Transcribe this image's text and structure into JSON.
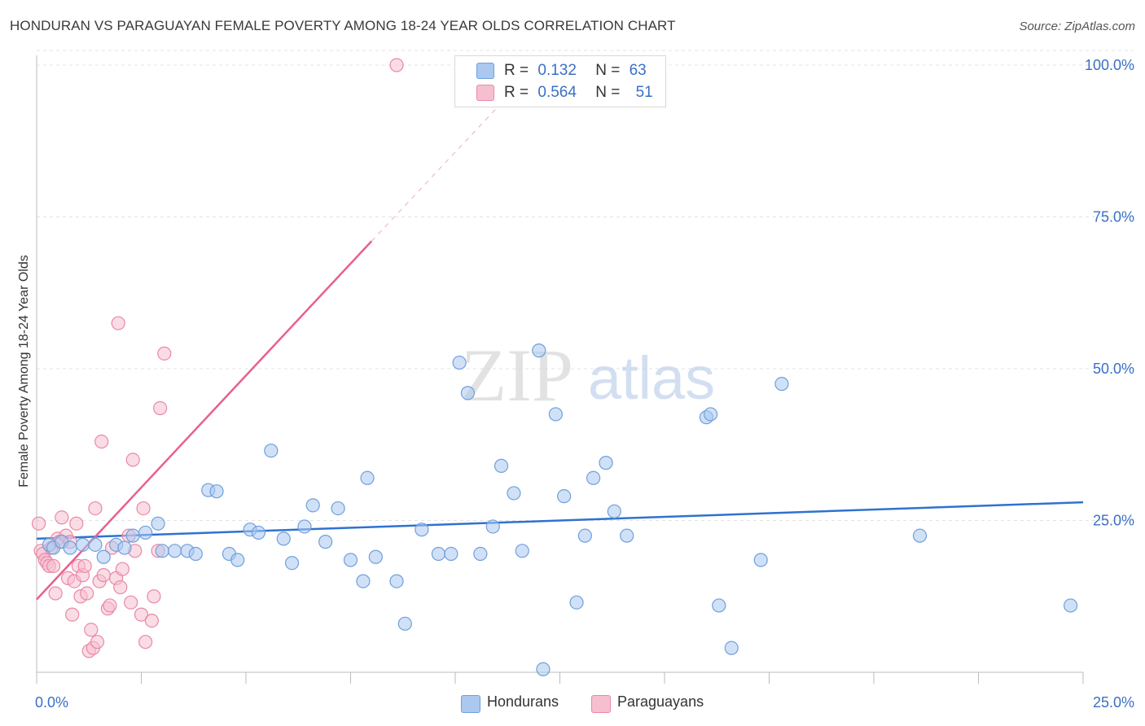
{
  "header": {
    "title": "HONDURAN VS PARAGUAYAN FEMALE POVERTY AMONG 18-24 YEAR OLDS CORRELATION CHART",
    "source": "Source: ZipAtlas.com"
  },
  "watermark": {
    "zip": "ZIP",
    "atlas": "atlas"
  },
  "legend": {
    "rows": [
      {
        "r_label": "R =",
        "r_value": "0.132",
        "n_label": "N =",
        "n_value": "63"
      },
      {
        "r_label": "R =",
        "r_value": "0.564",
        "n_label": "N =",
        "n_value": "51"
      }
    ]
  },
  "bottom_legend": {
    "series1": "Hondurans",
    "series2": "Paraguayans"
  },
  "colors": {
    "blue_fill": "#aac8f0",
    "blue_stroke": "#6f9fdc",
    "blue_line": "#2f72d0",
    "pink_fill": "#f6bfd0",
    "pink_stroke": "#e889a8",
    "pink_line": "#e8608e",
    "tick_label": "#3b6fc6",
    "grid": "#e3e3e3"
  },
  "chart_data": {
    "type": "scatter",
    "title": "HONDURAN VS PARAGUAYAN FEMALE POVERTY AMONG 18-24 YEAR OLDS CORRELATION CHART",
    "xlabel": "",
    "ylabel": "Female Poverty Among 18-24 Year Olds",
    "xlim": [
      0,
      25
    ],
    "ylim": [
      0,
      100
    ],
    "x_tick_labels": [
      "0.0%",
      "25.0%"
    ],
    "y_tick_labels": [
      "25.0%",
      "50.0%",
      "75.0%",
      "100.0%"
    ],
    "y_ticks": [
      25,
      50,
      75,
      100
    ],
    "grid": true,
    "legend_position": "top-center",
    "series": [
      {
        "name": "Hondurans",
        "R": 0.132,
        "N": 63,
        "trend": {
          "x": [
            0,
            25
          ],
          "y": [
            22.0,
            28.0
          ]
        },
        "points": [
          [
            0.3,
            21.0
          ],
          [
            0.4,
            20.5
          ],
          [
            0.6,
            21.5
          ],
          [
            0.8,
            20.5
          ],
          [
            1.1,
            21.0
          ],
          [
            1.4,
            21.0
          ],
          [
            1.6,
            19.0
          ],
          [
            1.9,
            21.0
          ],
          [
            2.1,
            20.5
          ],
          [
            2.3,
            22.5
          ],
          [
            2.6,
            23.0
          ],
          [
            2.9,
            24.5
          ],
          [
            3.0,
            20.0
          ],
          [
            3.3,
            20.0
          ],
          [
            3.6,
            20.0
          ],
          [
            3.8,
            19.5
          ],
          [
            4.1,
            30.0
          ],
          [
            4.3,
            29.8
          ],
          [
            4.6,
            19.5
          ],
          [
            4.8,
            18.5
          ],
          [
            5.1,
            23.5
          ],
          [
            5.3,
            23.0
          ],
          [
            5.6,
            36.5
          ],
          [
            5.9,
            22.0
          ],
          [
            6.1,
            18.0
          ],
          [
            6.4,
            24.0
          ],
          [
            6.6,
            27.5
          ],
          [
            6.9,
            21.5
          ],
          [
            7.2,
            27.0
          ],
          [
            7.5,
            18.5
          ],
          [
            7.8,
            15.0
          ],
          [
            7.9,
            32.0
          ],
          [
            8.1,
            19.0
          ],
          [
            8.6,
            15.0
          ],
          [
            8.8,
            8.0
          ],
          [
            9.2,
            23.5
          ],
          [
            9.6,
            19.5
          ],
          [
            9.9,
            19.5
          ],
          [
            10.1,
            51.0
          ],
          [
            10.3,
            46.0
          ],
          [
            10.6,
            19.5
          ],
          [
            10.9,
            24.0
          ],
          [
            11.1,
            34.0
          ],
          [
            11.4,
            29.5
          ],
          [
            11.6,
            20.0
          ],
          [
            12.0,
            53.0
          ],
          [
            12.1,
            0.5
          ],
          [
            12.4,
            42.5
          ],
          [
            12.6,
            29.0
          ],
          [
            12.9,
            11.5
          ],
          [
            13.1,
            22.5
          ],
          [
            13.3,
            32.0
          ],
          [
            13.6,
            34.5
          ],
          [
            13.8,
            26.5
          ],
          [
            14.1,
            22.5
          ],
          [
            16.0,
            42.0
          ],
          [
            16.1,
            42.5
          ],
          [
            16.3,
            11.0
          ],
          [
            16.6,
            4.0
          ],
          [
            17.3,
            18.5
          ],
          [
            17.8,
            47.5
          ],
          [
            21.1,
            22.5
          ],
          [
            24.7,
            11.0
          ]
        ]
      },
      {
        "name": "Paraguayans",
        "R": 0.564,
        "N": 51,
        "trend": {
          "x": [
            0,
            8.0
          ],
          "y": [
            12.0,
            71.0
          ]
        },
        "trend_dashed": {
          "x": [
            8.0,
            11.0
          ],
          "y": [
            71.0,
            93.0
          ]
        },
        "points": [
          [
            0.05,
            24.5
          ],
          [
            0.1,
            20.0
          ],
          [
            0.15,
            19.5
          ],
          [
            0.2,
            18.5
          ],
          [
            0.25,
            18.0
          ],
          [
            0.3,
            17.5
          ],
          [
            0.35,
            20.5
          ],
          [
            0.4,
            17.5
          ],
          [
            0.45,
            13.0
          ],
          [
            0.5,
            22.0
          ],
          [
            0.55,
            21.5
          ],
          [
            0.6,
            25.5
          ],
          [
            0.7,
            22.5
          ],
          [
            0.75,
            15.5
          ],
          [
            0.8,
            21.5
          ],
          [
            0.85,
            9.5
          ],
          [
            0.9,
            15.0
          ],
          [
            0.95,
            24.5
          ],
          [
            1.0,
            17.5
          ],
          [
            1.05,
            12.5
          ],
          [
            1.1,
            16.0
          ],
          [
            1.15,
            17.5
          ],
          [
            1.2,
            13.0
          ],
          [
            1.25,
            3.5
          ],
          [
            1.3,
            7.0
          ],
          [
            1.35,
            4.0
          ],
          [
            1.4,
            27.0
          ],
          [
            1.45,
            5.0
          ],
          [
            1.5,
            15.0
          ],
          [
            1.55,
            38.0
          ],
          [
            1.6,
            16.0
          ],
          [
            1.7,
            10.5
          ],
          [
            1.75,
            11.0
          ],
          [
            1.8,
            20.5
          ],
          [
            1.9,
            15.5
          ],
          [
            1.95,
            57.5
          ],
          [
            2.0,
            14.0
          ],
          [
            2.05,
            17.0
          ],
          [
            2.2,
            22.5
          ],
          [
            2.25,
            11.5
          ],
          [
            2.3,
            35.0
          ],
          [
            2.35,
            20.0
          ],
          [
            2.5,
            9.5
          ],
          [
            2.55,
            27.0
          ],
          [
            2.6,
            5.0
          ],
          [
            2.75,
            8.5
          ],
          [
            2.8,
            12.5
          ],
          [
            2.9,
            20.0
          ],
          [
            2.95,
            43.5
          ],
          [
            3.05,
            52.5
          ],
          [
            8.6,
            100.0
          ]
        ]
      }
    ]
  }
}
